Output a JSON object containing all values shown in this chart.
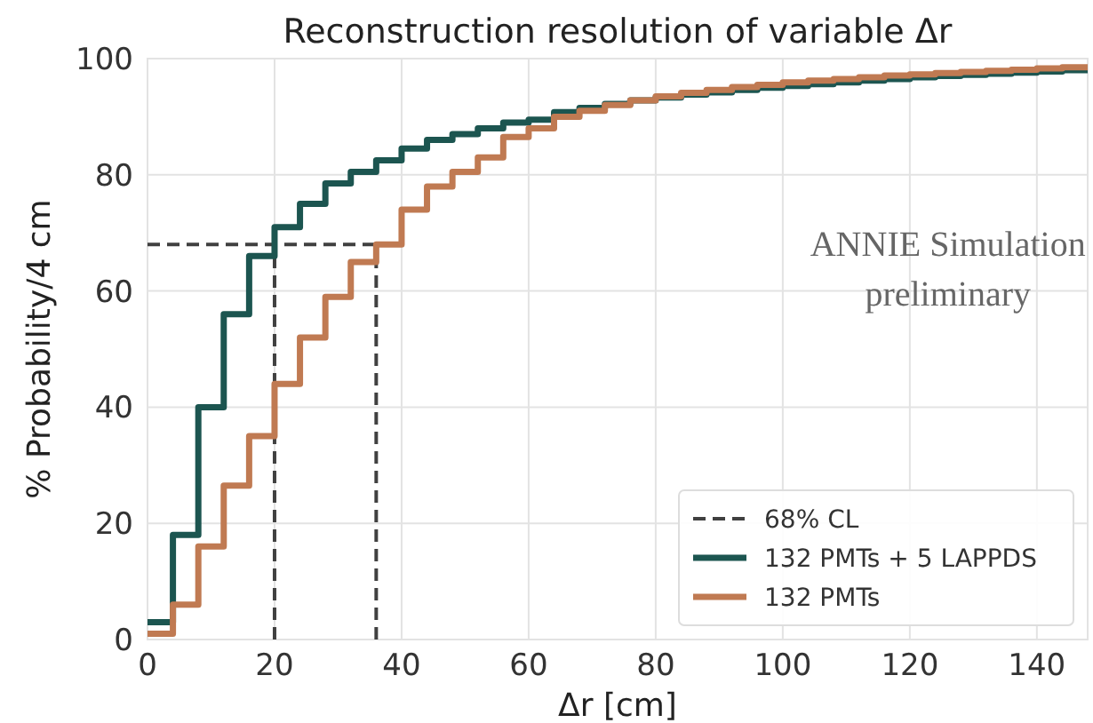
{
  "chart_data": {
    "type": "step",
    "title": "Reconstruction resolution of variable Δr",
    "xlabel": "Δr [cm]",
    "ylabel": "% Probability/4 cm",
    "x": [
      0,
      4,
      8,
      12,
      16,
      20,
      24,
      28,
      32,
      36,
      40,
      44,
      48,
      52,
      56,
      60,
      64,
      68,
      72,
      76,
      80,
      84,
      88,
      92,
      96,
      100,
      104,
      108,
      112,
      116,
      120,
      124,
      128,
      132,
      136,
      140,
      144,
      148
    ],
    "series": [
      {
        "name": "132 PMTs + 5 LAPPDS",
        "color": "#1c5550",
        "values": [
          3,
          18,
          40,
          56,
          66,
          71,
          75,
          78.5,
          80.5,
          82.5,
          84.5,
          86,
          87,
          88,
          89,
          89.5,
          90.8,
          91.5,
          92.2,
          92.8,
          93.3,
          93.8,
          94.2,
          94.6,
          95,
          95.3,
          95.6,
          95.9,
          96.2,
          96.5,
          96.8,
          97,
          97.2,
          97.4,
          97.6,
          97.8,
          98,
          98
        ]
      },
      {
        "name": "132 PMTs",
        "color": "#c07a52",
        "values": [
          1,
          6,
          16,
          26.5,
          35,
          44,
          52,
          59,
          65,
          68,
          74,
          78,
          80.5,
          83,
          86.5,
          88,
          90,
          91,
          92,
          92.8,
          93.5,
          94.1,
          94.6,
          95.1,
          95.5,
          95.9,
          96.2,
          96.5,
          96.8,
          97.1,
          97.3,
          97.5,
          97.7,
          97.9,
          98.1,
          98.3,
          98.5,
          98.5
        ]
      }
    ],
    "xlim": [
      0,
      148
    ],
    "xticks": [
      0,
      20,
      40,
      60,
      80,
      100,
      120,
      140
    ],
    "ylim": [
      0,
      100
    ],
    "yticks": [
      0,
      20,
      40,
      60,
      80,
      100
    ],
    "ref_lines": [
      {
        "axis": "y",
        "value": 68,
        "label": "68% CL",
        "color": "#404040",
        "line_style": "dashed"
      },
      {
        "axis": "x",
        "value": 20,
        "color": "#404040",
        "line_style": "dashed"
      },
      {
        "axis": "x",
        "value": 36,
        "color": "#404040",
        "line_style": "dashed"
      }
    ],
    "annotations": [
      "ANNIE Simulation",
      "preliminary"
    ],
    "grid": true,
    "legend": "bottom right"
  }
}
